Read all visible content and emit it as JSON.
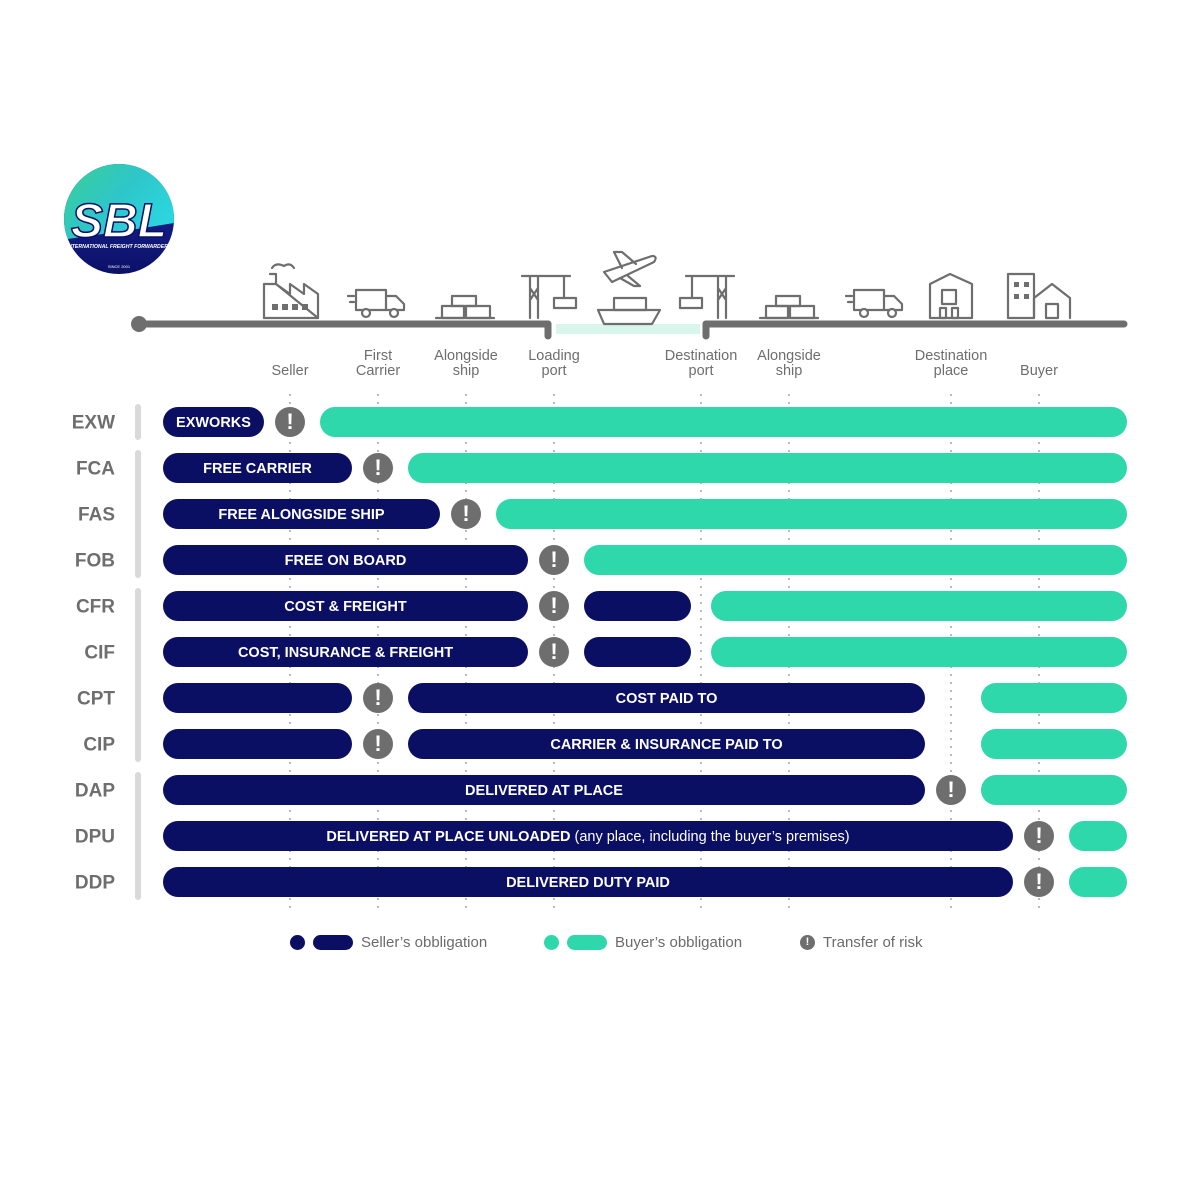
{
  "brand": {
    "logo_text": "SBL",
    "tagline": "INTERNATIONAL FREIGHT FORWARDERS",
    "since": "SINCE 2001"
  },
  "colors": {
    "seller": "#0b0f63",
    "buyer": "#2fd8aa",
    "risk": "#6e6e6e",
    "axis": "#6e6e6e",
    "label": "#6e6e6e"
  },
  "stations": [
    {
      "key": "seller",
      "label": "Seller"
    },
    {
      "key": "first_carrier",
      "label": "First Carrier"
    },
    {
      "key": "alongside_ship_1",
      "label": "Alongside ship"
    },
    {
      "key": "loading_port",
      "label": "Loading port"
    },
    {
      "key": "destination_port",
      "label": "Destination port"
    },
    {
      "key": "alongside_ship_2",
      "label": "Alongside ship"
    },
    {
      "key": "destination_place",
      "label": "Destination place"
    },
    {
      "key": "buyer",
      "label": "Buyer"
    }
  ],
  "terms": [
    {
      "code": "EXW",
      "group": 1,
      "segments": [
        {
          "type": "seller",
          "from": "start",
          "to": "seller_pre",
          "label": "EXWORKS"
        },
        {
          "type": "risk",
          "at": "seller"
        },
        {
          "type": "buyer",
          "from": "seller_post",
          "to": "end",
          "label": ""
        }
      ]
    },
    {
      "code": "FCA",
      "group": 2,
      "segments": [
        {
          "type": "seller",
          "from": "start",
          "to": "first_carrier_pre",
          "label": "FREE CARRIER"
        },
        {
          "type": "risk",
          "at": "first_carrier"
        },
        {
          "type": "buyer",
          "from": "first_carrier_post",
          "to": "end",
          "label": ""
        }
      ]
    },
    {
      "code": "FAS",
      "group": 2,
      "segments": [
        {
          "type": "seller",
          "from": "start",
          "to": "alongside_ship_1_pre",
          "label": "FREE ALONGSIDE SHIP"
        },
        {
          "type": "risk",
          "at": "alongside_ship_1"
        },
        {
          "type": "buyer",
          "from": "alongside_ship_1_post",
          "to": "end",
          "label": ""
        }
      ]
    },
    {
      "code": "FOB",
      "group": 2,
      "segments": [
        {
          "type": "seller",
          "from": "start",
          "to": "loading_port_pre",
          "label": "FREE ON BOARD"
        },
        {
          "type": "risk",
          "at": "loading_port"
        },
        {
          "type": "buyer",
          "from": "loading_port_post",
          "to": "end",
          "label": ""
        }
      ]
    },
    {
      "code": "CFR",
      "group": 3,
      "segments": [
        {
          "type": "seller",
          "from": "start",
          "to": "loading_port_pre",
          "label": "COST & FREIGHT"
        },
        {
          "type": "risk",
          "at": "loading_port"
        },
        {
          "type": "seller",
          "from": "loading_port_post",
          "to": "mid_pre",
          "label": ""
        },
        {
          "type": "buyer",
          "from": "mid_post",
          "to": "end",
          "label": ""
        }
      ]
    },
    {
      "code": "CIF",
      "group": 3,
      "segments": [
        {
          "type": "seller",
          "from": "start",
          "to": "loading_port_pre",
          "label": "COST, INSURANCE & FREIGHT"
        },
        {
          "type": "risk",
          "at": "loading_port"
        },
        {
          "type": "seller",
          "from": "loading_port_post",
          "to": "mid_pre",
          "label": ""
        },
        {
          "type": "buyer",
          "from": "mid_post",
          "to": "end",
          "label": ""
        }
      ]
    },
    {
      "code": "CPT",
      "group": 3,
      "segments": [
        {
          "type": "seller",
          "from": "start",
          "to": "first_carrier_pre",
          "label": ""
        },
        {
          "type": "risk",
          "at": "first_carrier"
        },
        {
          "type": "seller",
          "from": "first_carrier_post",
          "to": "destination_place_pre",
          "label": "COST PAID TO"
        },
        {
          "type": "buyer",
          "from": "destination_place_post",
          "to": "end",
          "label": ""
        }
      ]
    },
    {
      "code": "CIP",
      "group": 3,
      "segments": [
        {
          "type": "seller",
          "from": "start",
          "to": "first_carrier_pre",
          "label": ""
        },
        {
          "type": "risk",
          "at": "first_carrier"
        },
        {
          "type": "seller",
          "from": "first_carrier_post",
          "to": "destination_place_pre",
          "label": "CARRIER & INSURANCE PAID TO"
        },
        {
          "type": "buyer",
          "from": "destination_place_post",
          "to": "end",
          "label": ""
        }
      ]
    },
    {
      "code": "DAP",
      "group": 4,
      "segments": [
        {
          "type": "seller",
          "from": "start",
          "to": "destination_place_pre",
          "label": "DELIVERED AT PLACE"
        },
        {
          "type": "risk",
          "at": "destination_place"
        },
        {
          "type": "buyer",
          "from": "destination_place_post",
          "to": "end",
          "label": ""
        }
      ]
    },
    {
      "code": "DPU",
      "group": 4,
      "segments": [
        {
          "type": "seller",
          "from": "start",
          "to": "buyer_pre",
          "label": "DELIVERED AT PLACE UNLOADED",
          "note": " (any place, including the buyer’s premises)"
        },
        {
          "type": "risk",
          "at": "buyer"
        },
        {
          "type": "buyer",
          "from": "buyer_post",
          "to": "end",
          "label": ""
        }
      ]
    },
    {
      "code": "DDP",
      "group": 4,
      "segments": [
        {
          "type": "seller",
          "from": "start",
          "to": "buyer_pre",
          "label": "DELIVERED DUTY PAID"
        },
        {
          "type": "risk",
          "at": "buyer"
        },
        {
          "type": "buyer",
          "from": "buyer_post",
          "to": "end",
          "label": ""
        }
      ]
    }
  ],
  "legend": {
    "seller": "Seller’s obbligation",
    "buyer": "Buyer’s obbligation",
    "risk": "Transfer of risk"
  },
  "risk_glyph": "!"
}
